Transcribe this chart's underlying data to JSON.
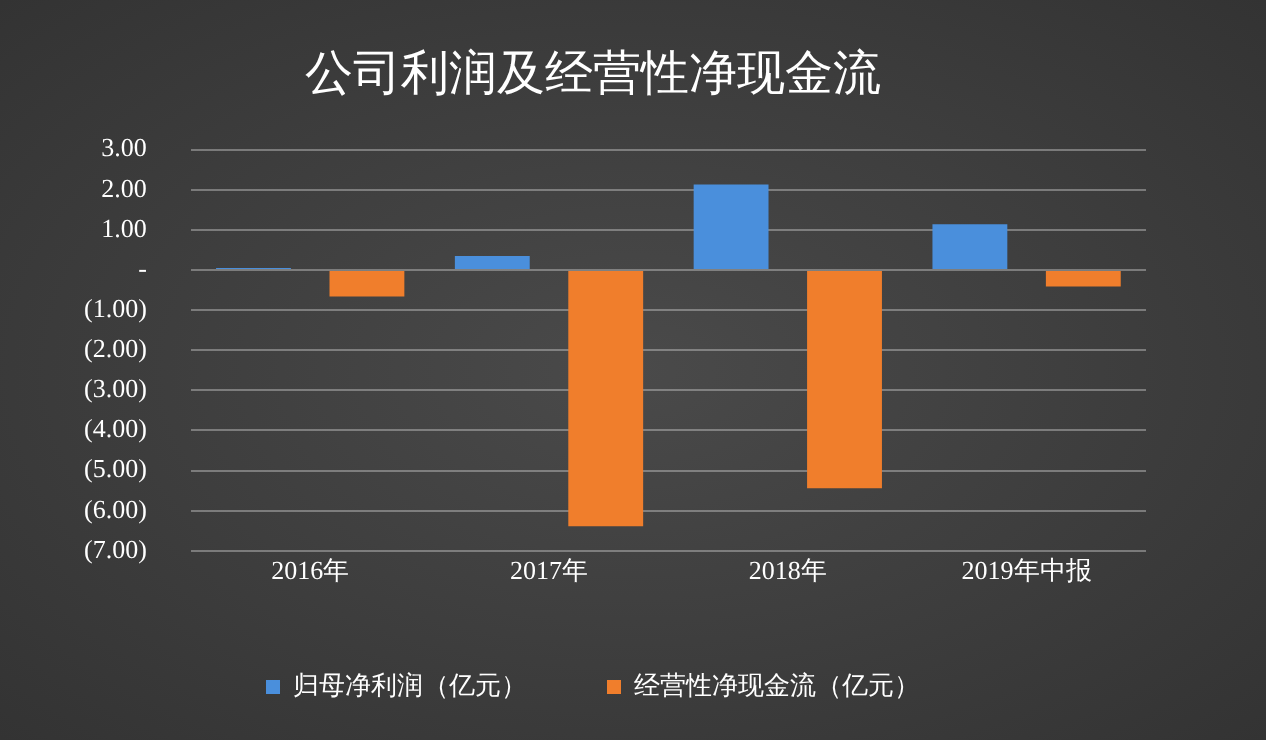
{
  "chart_data": {
    "type": "bar",
    "title": "公司利润及经营性净现金流",
    "categories": [
      "2016年",
      "2017年",
      "2018年",
      "2019年中报"
    ],
    "series": [
      {
        "name": "归母净利润（亿元）",
        "color": "#4a8fdc",
        "values": [
          0.05,
          0.35,
          2.13,
          1.14
        ]
      },
      {
        "name": "经营性净现金流（亿元）",
        "color": "#f07e2c",
        "values": [
          -0.66,
          -6.39,
          -5.44,
          -0.41
        ]
      }
    ],
    "ylim": [
      -7,
      3
    ],
    "yticks": [
      {
        "value": -7,
        "label": "(7.00)"
      },
      {
        "value": -6,
        "label": "(6.00)"
      },
      {
        "value": -5,
        "label": "(5.00)"
      },
      {
        "value": -4,
        "label": "(4.00)"
      },
      {
        "value": -3,
        "label": "(3.00)"
      },
      {
        "value": -2,
        "label": "(2.00)"
      },
      {
        "value": -1,
        "label": "(1.00)"
      },
      {
        "value": 0,
        "label": "-"
      },
      {
        "value": 1,
        "label": "1.00"
      },
      {
        "value": 2,
        "label": "2.00"
      },
      {
        "value": 3,
        "label": "3.00"
      }
    ],
    "grid": "y",
    "legend": "bottom"
  }
}
